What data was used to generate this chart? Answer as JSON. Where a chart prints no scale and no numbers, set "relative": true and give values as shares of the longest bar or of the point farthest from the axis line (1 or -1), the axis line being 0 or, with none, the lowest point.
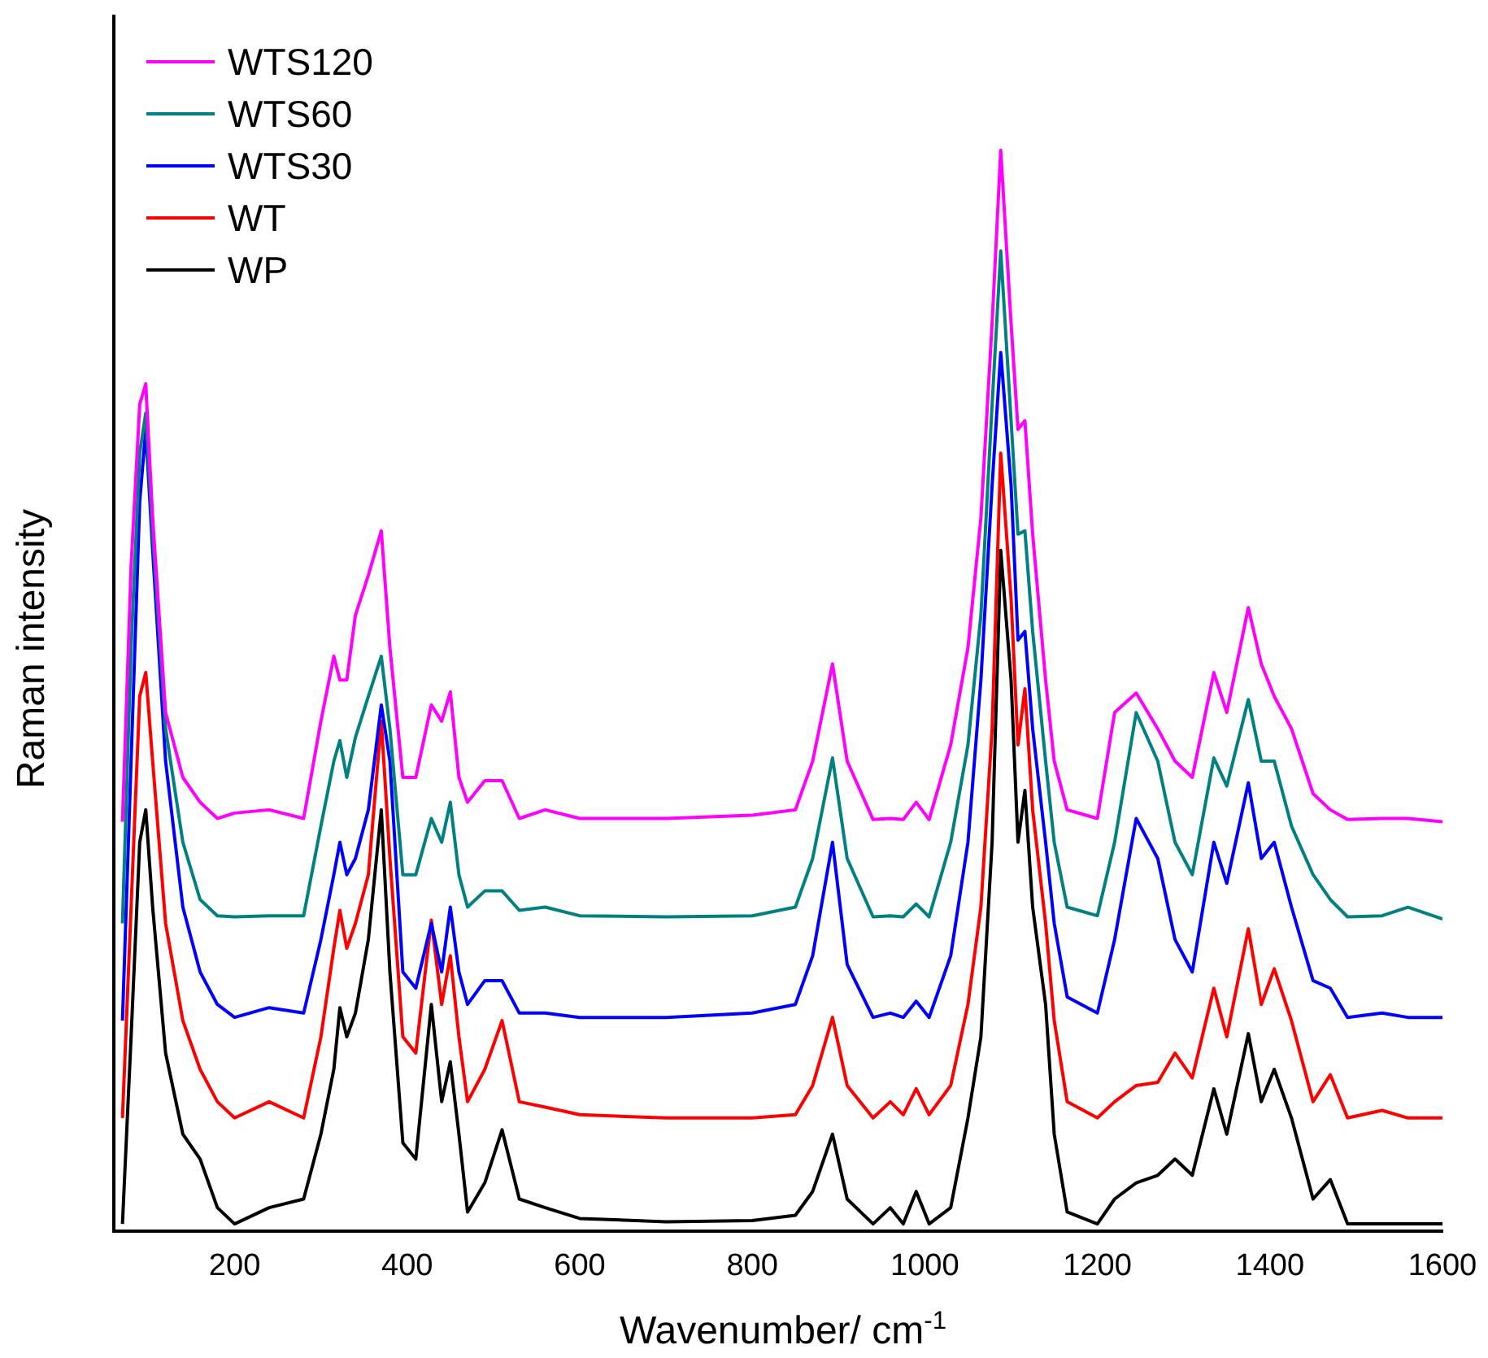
{
  "chart_data": {
    "type": "line",
    "xlabel": "Wavenumber/ cm$^{-1}$",
    "ylabel": "Raman intensity",
    "relative": true,
    "grid": false,
    "legend": "top left",
    "marker": "none",
    "line_style": "solid",
    "xlim": [
      60,
      1600
    ],
    "xticks": [
      200,
      400,
      600,
      800,
      1000,
      1200,
      1400,
      1600
    ],
    "x": [
      70,
      80,
      90,
      97,
      105,
      120,
      140,
      160,
      180,
      200,
      240,
      280,
      300,
      315,
      322,
      330,
      340,
      355,
      370,
      380,
      395,
      410,
      428,
      440,
      450,
      460,
      470,
      490,
      510,
      530,
      560,
      600,
      700,
      800,
      850,
      870,
      893,
      910,
      940,
      960,
      975,
      990,
      1005,
      1030,
      1050,
      1065,
      1078,
      1088,
      1100,
      1108,
      1116,
      1125,
      1140,
      1150,
      1165,
      1200,
      1220,
      1245,
      1270,
      1290,
      1310,
      1335,
      1350,
      1375,
      1390,
      1405,
      1425,
      1450,
      1470,
      1490,
      1530,
      1560,
      1600
    ],
    "series": [
      {
        "name": "WTS120",
        "color": "#ff00ff",
        "values": [
          0.379,
          0.615,
          0.765,
          0.784,
          0.66,
          0.48,
          0.42,
          0.397,
          0.382,
          0.387,
          0.39,
          0.382,
          0.472,
          0.532,
          0.51,
          0.51,
          0.57,
          0.607,
          0.648,
          0.54,
          0.42,
          0.42,
          0.487,
          0.472,
          0.499,
          0.42,
          0.397,
          0.417,
          0.417,
          0.382,
          0.39,
          0.382,
          0.382,
          0.385,
          0.39,
          0.435,
          0.525,
          0.435,
          0.381,
          0.382,
          0.381,
          0.397,
          0.381,
          0.45,
          0.54,
          0.66,
          0.84,
          1,
          0.84,
          0.742,
          0.75,
          0.645,
          0.51,
          0.435,
          0.39,
          0.382,
          0.48,
          0.498,
          0.465,
          0.435,
          0.42,
          0.517,
          0.48,
          0.577,
          0.525,
          0.495,
          0.465,
          0.405,
          0.39,
          0.381,
          0.382,
          0.382,
          0.379
        ]
      },
      {
        "name": "WTS60",
        "color": "#008080",
        "values": [
          0.285,
          0.54,
          0.72,
          0.757,
          0.645,
          0.465,
          0.36,
          0.307,
          0.292,
          0.291,
          0.292,
          0.292,
          0.375,
          0.435,
          0.454,
          0.42,
          0.457,
          0.495,
          0.532,
          0.465,
          0.33,
          0.33,
          0.382,
          0.36,
          0.397,
          0.33,
          0.3,
          0.315,
          0.315,
          0.297,
          0.3,
          0.292,
          0.291,
          0.292,
          0.3,
          0.345,
          0.438,
          0.345,
          0.291,
          0.292,
          0.291,
          0.303,
          0.291,
          0.36,
          0.45,
          0.57,
          0.765,
          0.907,
          0.75,
          0.645,
          0.648,
          0.555,
          0.435,
          0.36,
          0.3,
          0.292,
          0.36,
          0.48,
          0.435,
          0.36,
          0.33,
          0.438,
          0.412,
          0.492,
          0.435,
          0.435,
          0.375,
          0.33,
          0.307,
          0.291,
          0.292,
          0.3,
          0.289
        ]
      },
      {
        "name": "WTS30",
        "color": "#0000ff",
        "values": [
          0.195,
          0.435,
          0.675,
          0.742,
          0.63,
          0.435,
          0.3,
          0.24,
          0.21,
          0.198,
          0.207,
          0.202,
          0.27,
          0.33,
          0.36,
          0.33,
          0.345,
          0.39,
          0.487,
          0.435,
          0.24,
          0.225,
          0.285,
          0.24,
          0.3,
          0.24,
          0.21,
          0.232,
          0.232,
          0.202,
          0.202,
          0.198,
          0.198,
          0.202,
          0.21,
          0.255,
          0.36,
          0.247,
          0.198,
          0.202,
          0.198,
          0.213,
          0.198,
          0.255,
          0.36,
          0.51,
          0.69,
          0.813,
          0.69,
          0.547,
          0.555,
          0.465,
          0.36,
          0.285,
          0.217,
          0.202,
          0.27,
          0.382,
          0.345,
          0.27,
          0.24,
          0.36,
          0.322,
          0.415,
          0.345,
          0.36,
          0.3,
          0.232,
          0.225,
          0.198,
          0.202,
          0.198,
          0.198
        ]
      },
      {
        "name": "WT",
        "color": "#ff0000",
        "values": [
          0.105,
          0.3,
          0.495,
          0.517,
          0.435,
          0.285,
          0.195,
          0.15,
          0.12,
          0.105,
          0.12,
          0.105,
          0.18,
          0.262,
          0.297,
          0.262,
          0.285,
          0.33,
          0.472,
          0.345,
          0.18,
          0.165,
          0.288,
          0.21,
          0.255,
          0.18,
          0.12,
          0.15,
          0.195,
          0.12,
          0.115,
          0.108,
          0.105,
          0.105,
          0.108,
          0.135,
          0.198,
          0.135,
          0.105,
          0.12,
          0.108,
          0.132,
          0.108,
          0.135,
          0.21,
          0.3,
          0.465,
          0.72,
          0.585,
          0.45,
          0.502,
          0.39,
          0.285,
          0.195,
          0.12,
          0.105,
          0.12,
          0.135,
          0.138,
          0.165,
          0.142,
          0.225,
          0.18,
          0.28,
          0.21,
          0.243,
          0.195,
          0.12,
          0.145,
          0.105,
          0.112,
          0.105,
          0.105
        ]
      },
      {
        "name": "WP",
        "color": "#000000",
        "values": [
          0.007,
          0.18,
          0.36,
          0.39,
          0.3,
          0.165,
          0.09,
          0.067,
          0.022,
          0.007,
          0.022,
          0.03,
          0.09,
          0.15,
          0.207,
          0.18,
          0.202,
          0.27,
          0.39,
          0.24,
          0.082,
          0.067,
          0.21,
          0.12,
          0.157,
          0.09,
          0.018,
          0.045,
          0.094,
          0.03,
          0.022,
          0.012,
          0.009,
          0.01,
          0.015,
          0.037,
          0.09,
          0.03,
          0.007,
          0.022,
          0.007,
          0.037,
          0.007,
          0.022,
          0.105,
          0.18,
          0.36,
          0.63,
          0.51,
          0.36,
          0.408,
          0.3,
          0.21,
          0.09,
          0.018,
          0.007,
          0.03,
          0.045,
          0.052,
          0.067,
          0.052,
          0.132,
          0.09,
          0.183,
          0.12,
          0.15,
          0.105,
          0.03,
          0.048,
          0.007,
          0.007,
          0.007,
          0.007
        ]
      }
    ]
  }
}
